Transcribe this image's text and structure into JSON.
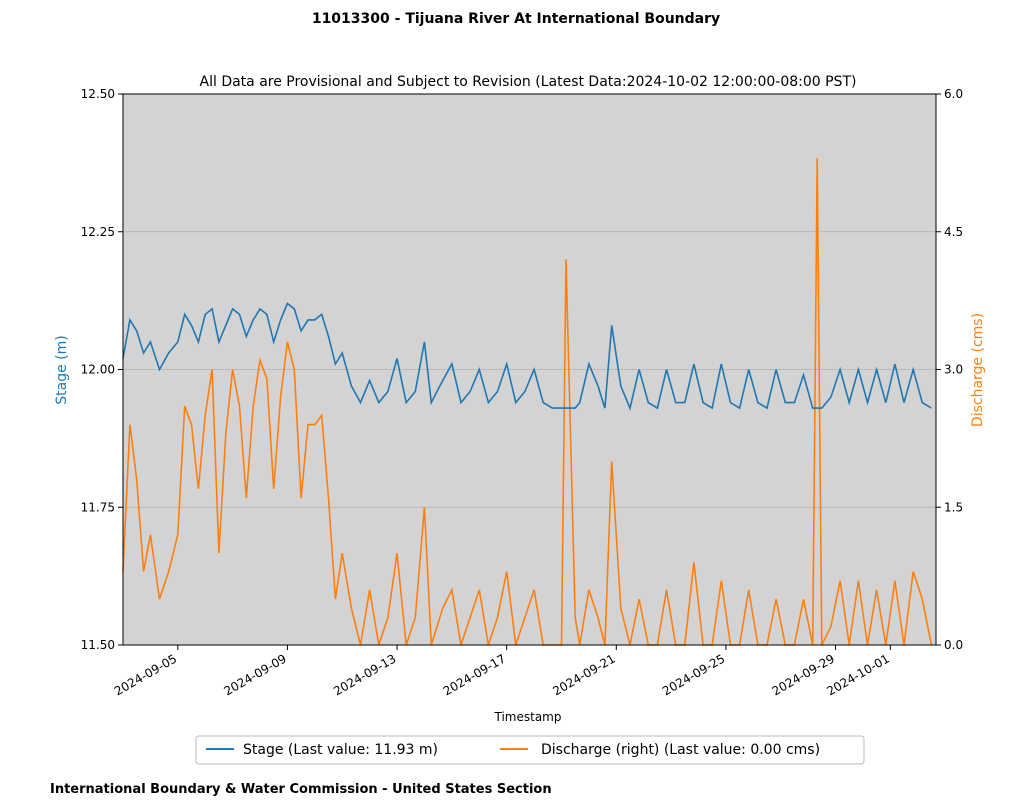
{
  "chart_data": {
    "type": "line",
    "title": "11013300 - Tijuana River At International Boundary",
    "subtitle": "All Data are Provisional and  Subject to Revision (Latest Data:2024-10-02 12:00:00-08:00 PST)",
    "xlabel": "Timestamp",
    "ylabel_left": "Stage (m)",
    "ylabel_right": "Discharge (cms)",
    "ylim_left": [
      11.5,
      12.5
    ],
    "ylim_right": [
      0.0,
      6.0
    ],
    "yticks_left": [
      "11.50",
      "11.75",
      "12.00",
      "12.25",
      "12.50"
    ],
    "yticks_right": [
      "0.0",
      "1.5",
      "3.0",
      "4.5",
      "6.0"
    ],
    "xlim": [
      "2024-09-03",
      "2024-10-02T16:00"
    ],
    "xticks": [
      "2024-09-05",
      "2024-09-09",
      "2024-09-13",
      "2024-09-17",
      "2024-09-21",
      "2024-09-25",
      "2024-09-29",
      "2024-10-01"
    ],
    "grid": "horizontal",
    "background": "#d3d3d3",
    "legend_position": "bottom-center",
    "series": [
      {
        "name": "Stage (Last value: 11.93 m)",
        "axis": "left",
        "color": "#1f77b4",
        "x": [
          "2024-09-03T00:00",
          "2024-09-03T06:00",
          "2024-09-03T12:00",
          "2024-09-03T18:00",
          "2024-09-04T00:00",
          "2024-09-04T08:00",
          "2024-09-04T16:00",
          "2024-09-05T00:00",
          "2024-09-05T06:00",
          "2024-09-05T12:00",
          "2024-09-05T18:00",
          "2024-09-06T00:00",
          "2024-09-06T06:00",
          "2024-09-06T12:00",
          "2024-09-06T18:00",
          "2024-09-07T00:00",
          "2024-09-07T06:00",
          "2024-09-07T12:00",
          "2024-09-07T18:00",
          "2024-09-08T00:00",
          "2024-09-08T06:00",
          "2024-09-08T12:00",
          "2024-09-08T18:00",
          "2024-09-09T00:00",
          "2024-09-09T06:00",
          "2024-09-09T12:00",
          "2024-09-09T18:00",
          "2024-09-10T00:00",
          "2024-09-10T06:00",
          "2024-09-10T12:00",
          "2024-09-10T18:00",
          "2024-09-11T00:00",
          "2024-09-11T08:00",
          "2024-09-11T16:00",
          "2024-09-12T00:00",
          "2024-09-12T08:00",
          "2024-09-12T16:00",
          "2024-09-13T00:00",
          "2024-09-13T08:00",
          "2024-09-13T16:00",
          "2024-09-14T00:00",
          "2024-09-14T06:00",
          "2024-09-14T16:00",
          "2024-09-15T00:00",
          "2024-09-15T08:00",
          "2024-09-15T16:00",
          "2024-09-16T00:00",
          "2024-09-16T08:00",
          "2024-09-16T16:00",
          "2024-09-17T00:00",
          "2024-09-17T08:00",
          "2024-09-17T16:00",
          "2024-09-18T00:00",
          "2024-09-18T08:00",
          "2024-09-18T16:00",
          "2024-09-19T00:00",
          "2024-09-19T04:00",
          "2024-09-19T12:00",
          "2024-09-19T16:00",
          "2024-09-20T00:00",
          "2024-09-20T08:00",
          "2024-09-20T14:00",
          "2024-09-20T20:00",
          "2024-09-21T04:00",
          "2024-09-21T12:00",
          "2024-09-21T20:00",
          "2024-09-22T04:00",
          "2024-09-22T12:00",
          "2024-09-22T20:00",
          "2024-09-23T04:00",
          "2024-09-23T12:00",
          "2024-09-23T20:00",
          "2024-09-24T04:00",
          "2024-09-24T12:00",
          "2024-09-24T20:00",
          "2024-09-25T04:00",
          "2024-09-25T12:00",
          "2024-09-25T20:00",
          "2024-09-26T04:00",
          "2024-09-26T12:00",
          "2024-09-26T20:00",
          "2024-09-27T04:00",
          "2024-09-27T12:00",
          "2024-09-27T20:00",
          "2024-09-28T04:00",
          "2024-09-28T08:00",
          "2024-09-28T12:00",
          "2024-09-28T20:00",
          "2024-09-29T04:00",
          "2024-09-29T12:00",
          "2024-09-29T20:00",
          "2024-09-30T04:00",
          "2024-09-30T12:00",
          "2024-09-30T20:00",
          "2024-10-01T04:00",
          "2024-10-01T12:00",
          "2024-10-01T20:00",
          "2024-10-02T04:00",
          "2024-10-02T12:00"
        ],
        "y": [
          12.02,
          12.09,
          12.07,
          12.03,
          12.05,
          12.0,
          12.03,
          12.05,
          12.1,
          12.08,
          12.05,
          12.1,
          12.11,
          12.05,
          12.08,
          12.11,
          12.1,
          12.06,
          12.09,
          12.11,
          12.1,
          12.05,
          12.09,
          12.12,
          12.11,
          12.07,
          12.09,
          12.09,
          12.1,
          12.06,
          12.01,
          12.03,
          11.97,
          11.94,
          11.98,
          11.94,
          11.96,
          12.02,
          11.94,
          11.96,
          12.05,
          11.94,
          11.98,
          12.01,
          11.94,
          11.96,
          12.0,
          11.94,
          11.96,
          12.01,
          11.94,
          11.96,
          12.0,
          11.94,
          11.93,
          11.93,
          11.93,
          11.93,
          11.94,
          12.01,
          11.97,
          11.93,
          12.08,
          11.97,
          11.93,
          12.0,
          11.94,
          11.93,
          12.0,
          11.94,
          11.94,
          12.01,
          11.94,
          11.93,
          12.01,
          11.94,
          11.93,
          12.0,
          11.94,
          11.93,
          12.0,
          11.94,
          11.94,
          11.99,
          11.93,
          11.93,
          11.93,
          11.95,
          12.0,
          11.94,
          12.0,
          11.94,
          12.0,
          11.94,
          12.01,
          11.94,
          12.0,
          11.94,
          11.93
        ]
      },
      {
        "name": "Discharge (right) (Last value: 0.00 cms)",
        "axis": "right",
        "color": "#ff7f0e",
        "x": [
          "2024-09-03T00:00",
          "2024-09-03T06:00",
          "2024-09-03T12:00",
          "2024-09-03T18:00",
          "2024-09-04T00:00",
          "2024-09-04T08:00",
          "2024-09-04T16:00",
          "2024-09-05T00:00",
          "2024-09-05T06:00",
          "2024-09-05T12:00",
          "2024-09-05T18:00",
          "2024-09-06T00:00",
          "2024-09-06T06:00",
          "2024-09-06T12:00",
          "2024-09-06T18:00",
          "2024-09-07T00:00",
          "2024-09-07T06:00",
          "2024-09-07T12:00",
          "2024-09-07T18:00",
          "2024-09-08T00:00",
          "2024-09-08T06:00",
          "2024-09-08T12:00",
          "2024-09-08T18:00",
          "2024-09-09T00:00",
          "2024-09-09T06:00",
          "2024-09-09T12:00",
          "2024-09-09T18:00",
          "2024-09-10T00:00",
          "2024-09-10T06:00",
          "2024-09-10T12:00",
          "2024-09-10T18:00",
          "2024-09-11T00:00",
          "2024-09-11T08:00",
          "2024-09-11T16:00",
          "2024-09-12T00:00",
          "2024-09-12T08:00",
          "2024-09-12T16:00",
          "2024-09-13T00:00",
          "2024-09-13T08:00",
          "2024-09-13T16:00",
          "2024-09-14T00:00",
          "2024-09-14T06:00",
          "2024-09-14T16:00",
          "2024-09-15T00:00",
          "2024-09-15T08:00",
          "2024-09-15T16:00",
          "2024-09-16T00:00",
          "2024-09-16T08:00",
          "2024-09-16T16:00",
          "2024-09-17T00:00",
          "2024-09-17T08:00",
          "2024-09-17T16:00",
          "2024-09-18T00:00",
          "2024-09-18T08:00",
          "2024-09-18T16:00",
          "2024-09-19T00:00",
          "2024-09-19T04:00",
          "2024-09-19T12:00",
          "2024-09-19T16:00",
          "2024-09-20T00:00",
          "2024-09-20T08:00",
          "2024-09-20T14:00",
          "2024-09-20T20:00",
          "2024-09-21T04:00",
          "2024-09-21T12:00",
          "2024-09-21T20:00",
          "2024-09-22T04:00",
          "2024-09-22T12:00",
          "2024-09-22T20:00",
          "2024-09-23T04:00",
          "2024-09-23T12:00",
          "2024-09-23T20:00",
          "2024-09-24T04:00",
          "2024-09-24T12:00",
          "2024-09-24T20:00",
          "2024-09-25T04:00",
          "2024-09-25T12:00",
          "2024-09-25T20:00",
          "2024-09-26T04:00",
          "2024-09-26T12:00",
          "2024-09-26T20:00",
          "2024-09-27T04:00",
          "2024-09-27T12:00",
          "2024-09-27T20:00",
          "2024-09-28T04:00",
          "2024-09-28T08:00",
          "2024-09-28T12:00",
          "2024-09-28T20:00",
          "2024-09-29T04:00",
          "2024-09-29T12:00",
          "2024-09-29T20:00",
          "2024-09-30T04:00",
          "2024-09-30T12:00",
          "2024-09-30T20:00",
          "2024-10-01T04:00",
          "2024-10-01T12:00",
          "2024-10-01T20:00",
          "2024-10-02T04:00",
          "2024-10-02T12:00"
        ],
        "y": [
          0.8,
          2.4,
          1.8,
          0.8,
          1.2,
          0.5,
          0.8,
          1.2,
          2.6,
          2.4,
          1.7,
          2.5,
          3.0,
          1.0,
          2.3,
          3.0,
          2.6,
          1.6,
          2.6,
          3.1,
          2.9,
          1.7,
          2.7,
          3.3,
          3.0,
          1.6,
          2.4,
          2.4,
          2.5,
          1.6,
          0.5,
          1.0,
          0.4,
          0.0,
          0.6,
          0.0,
          0.3,
          1.0,
          0.0,
          0.3,
          1.5,
          0.0,
          0.4,
          0.6,
          0.0,
          0.3,
          0.6,
          0.0,
          0.3,
          0.8,
          0.0,
          0.3,
          0.6,
          0.0,
          0.0,
          0.0,
          4.2,
          0.3,
          0.0,
          0.6,
          0.3,
          0.0,
          2.0,
          0.4,
          0.0,
          0.5,
          0.0,
          0.0,
          0.6,
          0.0,
          0.0,
          0.9,
          0.0,
          0.0,
          0.7,
          0.0,
          0.0,
          0.6,
          0.0,
          0.0,
          0.5,
          0.0,
          0.0,
          0.5,
          0.0,
          5.3,
          0.0,
          0.2,
          0.7,
          0.0,
          0.7,
          0.0,
          0.6,
          0.0,
          0.7,
          0.0,
          0.8,
          0.5,
          0.0
        ]
      }
    ]
  },
  "footer": "International Boundary & Water Commission - United States Section"
}
